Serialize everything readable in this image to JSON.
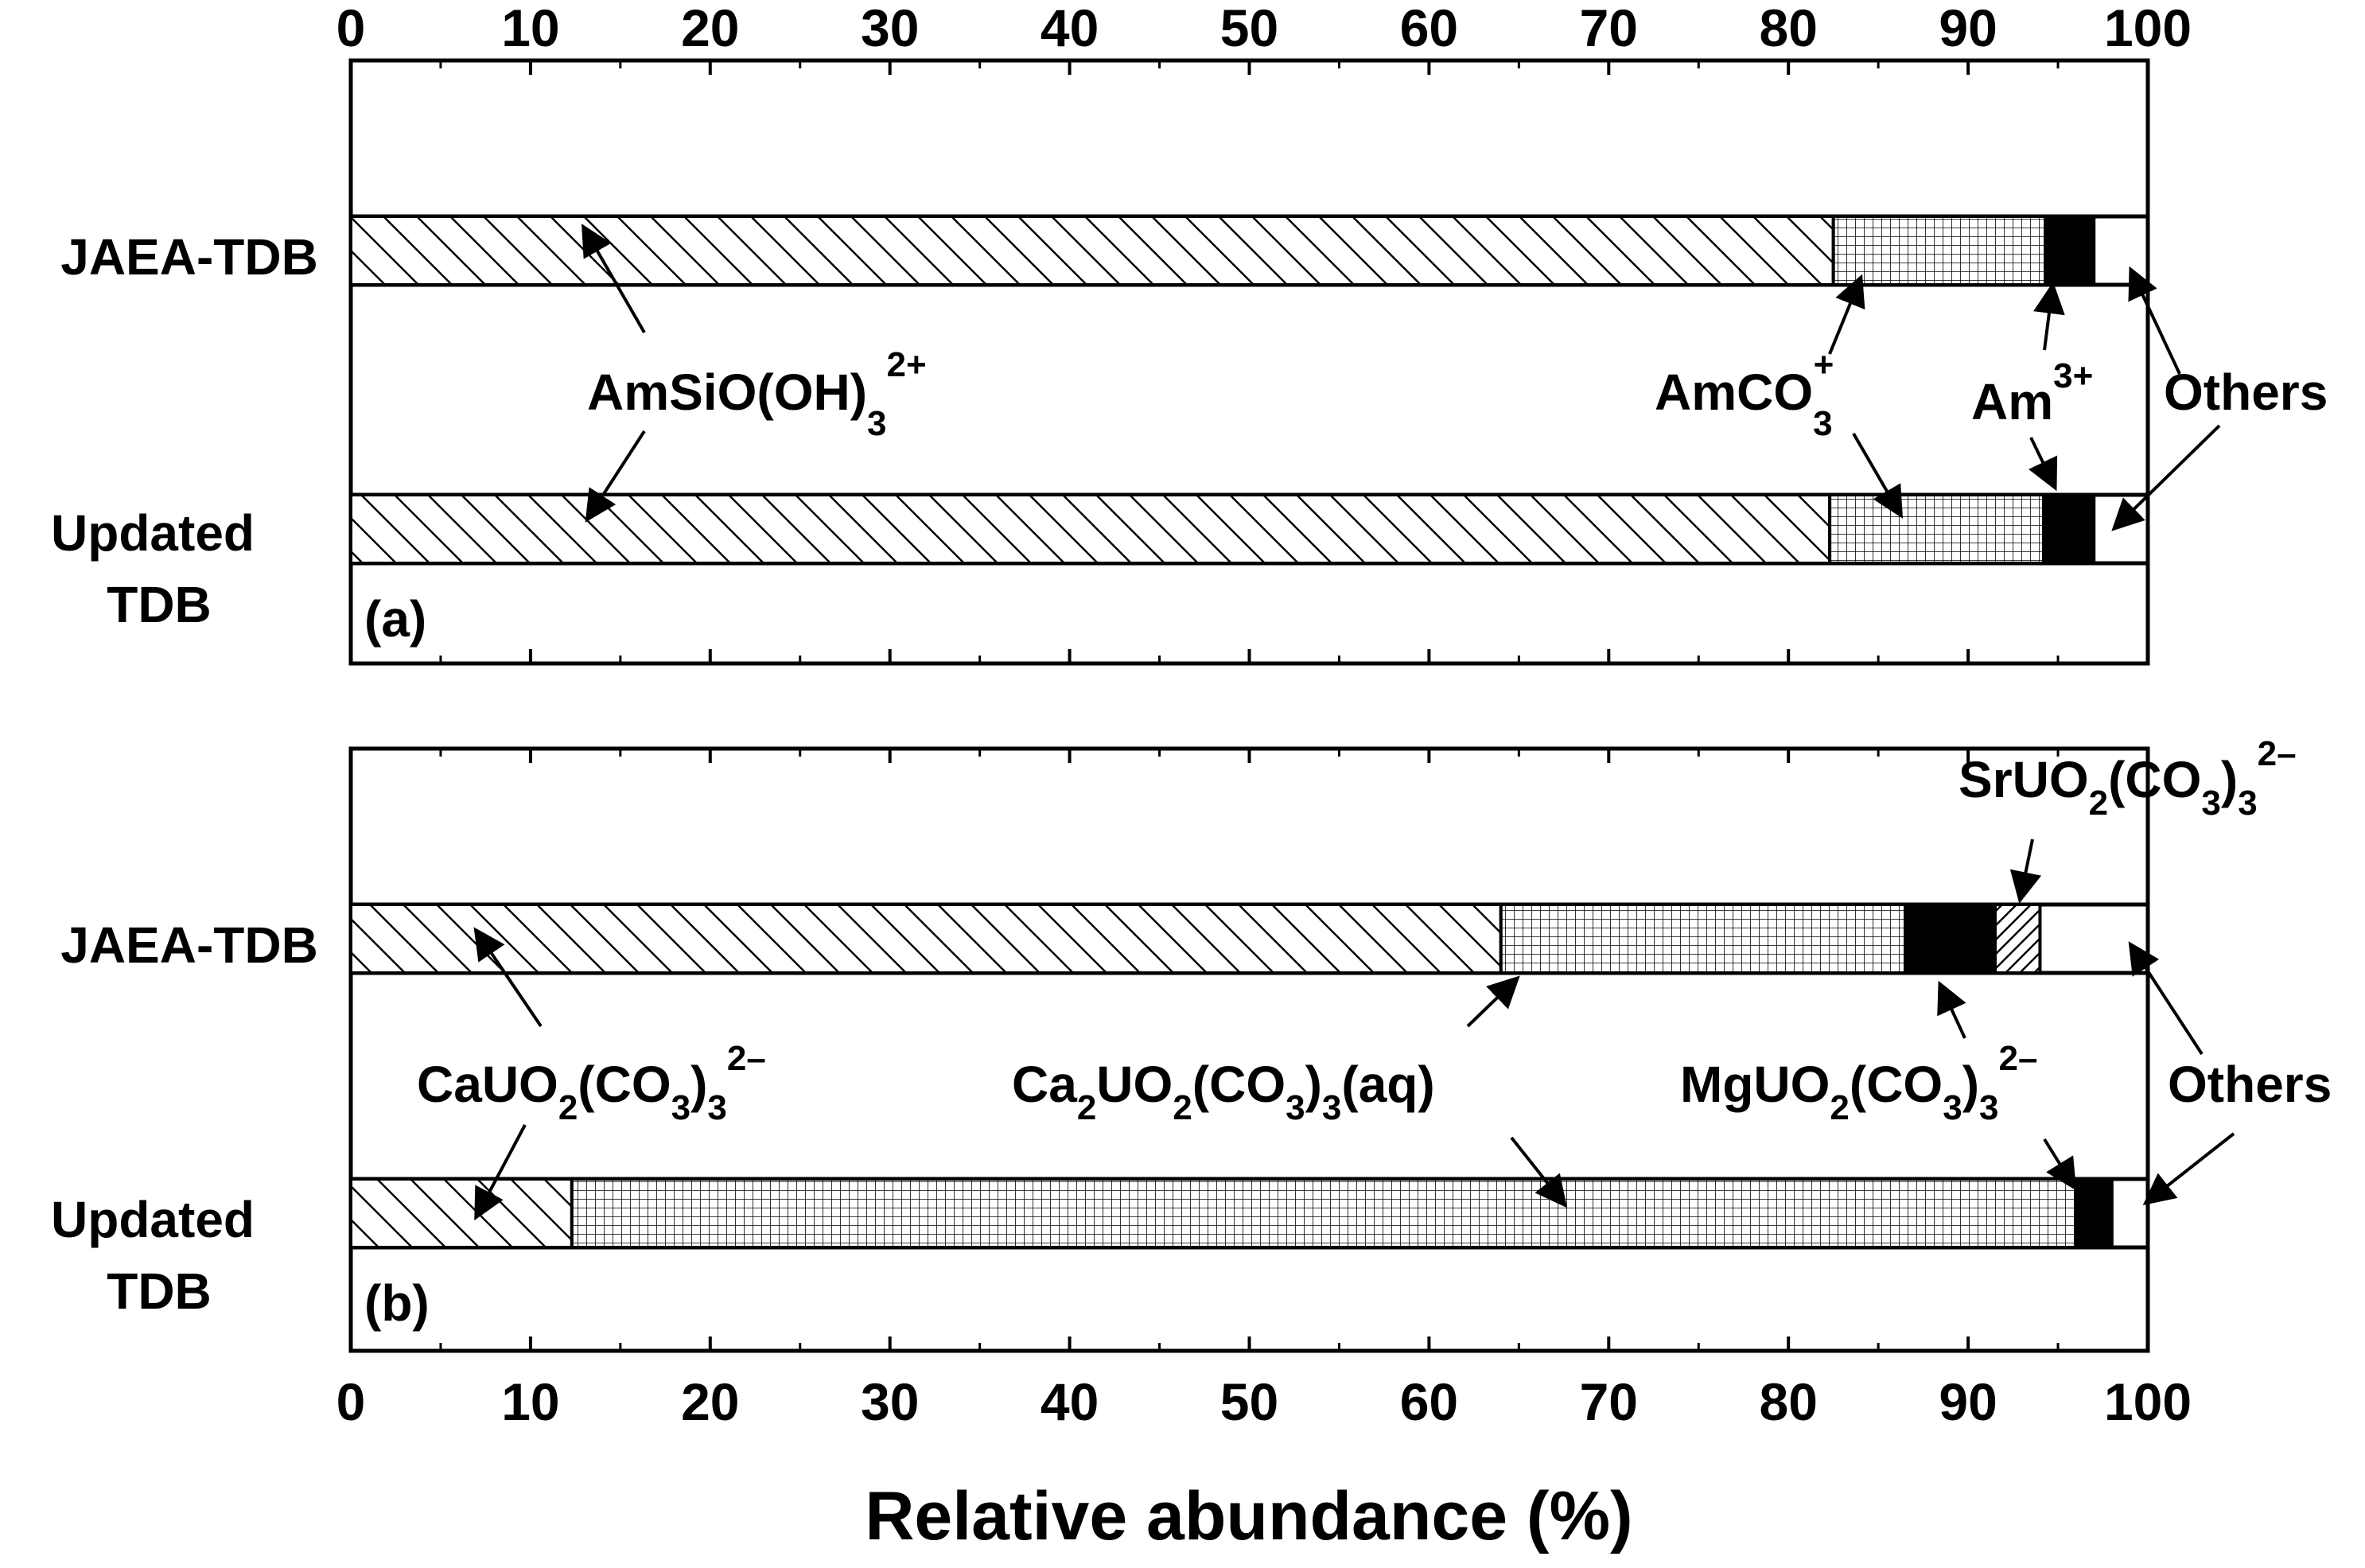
{
  "chart_data": {
    "type": "bar",
    "orientation": "horizontal-stacked",
    "xlabel": "Relative abundance (%)",
    "xlim": [
      0,
      100
    ],
    "xticks": [
      0,
      10,
      20,
      30,
      40,
      50,
      60,
      70,
      80,
      90,
      100
    ],
    "panels": [
      {
        "panel_label": "(a)",
        "rows": [
          {
            "label": "JAEA-TDB",
            "segments": [
              {
                "species": "AmSiO(OH)3 2+",
                "value": 82.5,
                "pattern": "diag"
              },
              {
                "species": "AmCO3 +",
                "value": 11.8,
                "pattern": "grid"
              },
              {
                "species": "Am 3+",
                "value": 2.7,
                "pattern": "solid"
              },
              {
                "species": "Others",
                "value": 3.0,
                "pattern": "none"
              }
            ]
          },
          {
            "label": "Updated TDB",
            "segments": [
              {
                "species": "AmSiO(OH)3 2+",
                "value": 82.3,
                "pattern": "diag"
              },
              {
                "species": "AmCO3 +",
                "value": 11.9,
                "pattern": "grid"
              },
              {
                "species": "Am 3+",
                "value": 2.8,
                "pattern": "solid"
              },
              {
                "species": "Others",
                "value": 3.0,
                "pattern": "none"
              }
            ]
          }
        ],
        "species_labels": [
          {
            "base": "AmSiO(OH)",
            "sub": "3",
            "sup": "2+"
          },
          {
            "base": "AmCO",
            "sub": "3",
            "sup": "+"
          },
          {
            "base": "Am",
            "sub": "",
            "sup": "3+"
          },
          {
            "base": "Others",
            "sub": "",
            "sup": ""
          }
        ]
      },
      {
        "panel_label": "(b)",
        "rows": [
          {
            "label": "JAEA-TDB",
            "segments": [
              {
                "species": "CaUO2(CO3)3 2-",
                "value": 64.0,
                "pattern": "diag"
              },
              {
                "species": "Ca2UO2(CO3)3(aq)",
                "value": 22.5,
                "pattern": "grid"
              },
              {
                "species": "MgUO2(CO3)3 2-",
                "value": 5.0,
                "pattern": "solid"
              },
              {
                "species": "SrUO2(CO3)3 2-",
                "value": 2.5,
                "pattern": "diag-dense"
              },
              {
                "species": "Others",
                "value": 6.0,
                "pattern": "none"
              }
            ]
          },
          {
            "label": "Updated TDB",
            "segments": [
              {
                "species": "CaUO2(CO3)3 2-",
                "value": 12.3,
                "pattern": "diag"
              },
              {
                "species": "Ca2UO2(CO3)3(aq)",
                "value": 83.7,
                "pattern": "grid"
              },
              {
                "species": "MgUO2(CO3)3 2-",
                "value": 2.0,
                "pattern": "solid"
              },
              {
                "species": "Others",
                "value": 2.0,
                "pattern": "none"
              }
            ]
          }
        ],
        "species_labels": [
          {
            "parts": [
              "CaUO",
              "2",
              "(CO",
              "3",
              ")",
              "3"
            ],
            "sup": "2–"
          },
          {
            "parts": [
              "Ca",
              "2",
              "UO",
              "2",
              "(CO",
              "3",
              ")",
              "3",
              "(aq)"
            ],
            "sup": ""
          },
          {
            "parts": [
              "MgUO",
              "2",
              "(CO",
              "3",
              ")",
              "3"
            ],
            "sup": "2–"
          },
          {
            "parts": [
              "SrUO",
              "2",
              "(CO",
              "3",
              ")",
              "3"
            ],
            "sup": "2–"
          },
          {
            "parts": [
              "Others"
            ],
            "sup": ""
          }
        ]
      }
    ]
  }
}
